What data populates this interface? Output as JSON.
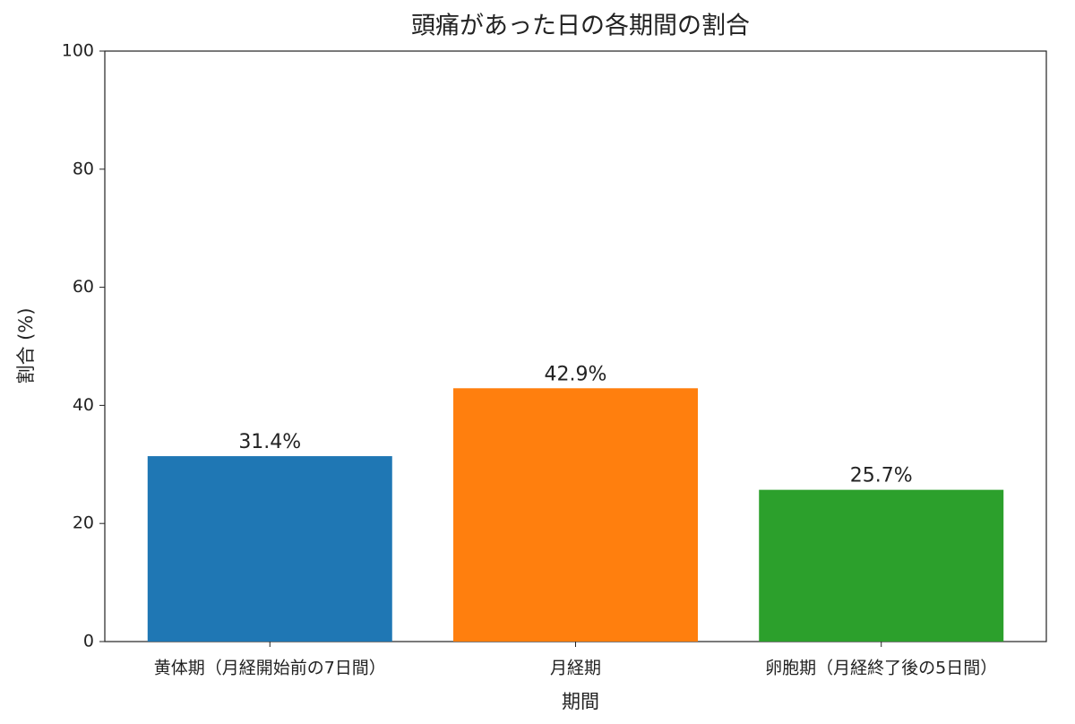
{
  "chart_data": {
    "type": "bar",
    "title": "頭痛があった日の各期間の割合",
    "xlabel": "期間",
    "ylabel": "割合 (%)",
    "categories": [
      "黄体期（月経開始前の7日間）",
      "月経期",
      "卵胞期（月経終了後の5日間）"
    ],
    "values": [
      31.4,
      42.9,
      25.7
    ],
    "value_labels": [
      "31.4%",
      "42.9%",
      "25.7%"
    ],
    "colors": [
      "#1f77b4",
      "#ff7f0e",
      "#2ca02c"
    ],
    "ylim": [
      0,
      100
    ],
    "yticks": [
      0,
      20,
      40,
      60,
      80,
      100
    ],
    "grid": false
  }
}
